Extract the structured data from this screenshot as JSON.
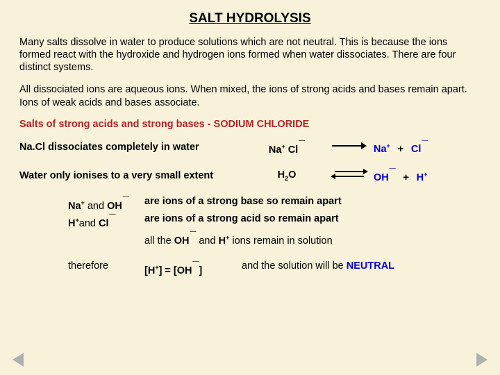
{
  "title": "SALT HYDROLYSIS",
  "para1": "Many salts dissolve in water to produce solutions which are not neutral.  This is because the ions formed react with the hydroxide and hydrogen ions formed when water dissociates. There are four distinct systems.",
  "para2": "All dissociated ions are aqueous ions.  When mixed, the ions of strong acids and bases remain apart. Ions of weak acids and bases associate.",
  "subheading": "Salts of strong acids and strong bases - SODIUM CHLORIDE",
  "eq1": {
    "desc": "Na.Cl dissociates completely in water",
    "left_a": "Na",
    "left_a_sup": "+",
    "left_b": "Cl",
    "left_b_sup": "¯",
    "right_a": "Na",
    "right_a_sup": "+",
    "right_b": "Cl",
    "right_b_sup": "¯"
  },
  "eq2": {
    "desc": "Water only ionises to a very small extent",
    "left": "H",
    "left_sub": "2",
    "left_b": "O",
    "right_a": "OH",
    "right_a_sup": "¯",
    "right_b": "H",
    "right_b_sup": "+"
  },
  "pairs": {
    "r1": {
      "l1": "Na",
      "l1s": "+",
      "mid": " and ",
      "l2": "OH",
      "l2s": "¯",
      "exp": "are ions of a strong base so remain apart"
    },
    "r2": {
      "l1": "H",
      "l1s": "+",
      "mid": "and   ",
      "l2": "Cl",
      "l2s": "¯",
      "exp": "are ions of a strong acid so remain apart"
    },
    "r3_pre": "all the ",
    "r3_a": "OH",
    "r3_as": "¯",
    "r3_mid": " and ",
    "r3_b": "H",
    "r3_bs": "+",
    "r3_post": "   ions remain in solution"
  },
  "therefore": "therefore",
  "final_eq_l": "[H",
  "final_eq_lsup": "+",
  "final_eq_mid": "]  =  [OH",
  "final_eq_msup": "¯",
  "final_eq_r": "]",
  "final_txt_a": "and the solution will be ",
  "final_txt_b": "NEUTRAL",
  "colors": {
    "heading": "#b22222",
    "blue": "#0000cc",
    "bg": "#f8f2db"
  }
}
